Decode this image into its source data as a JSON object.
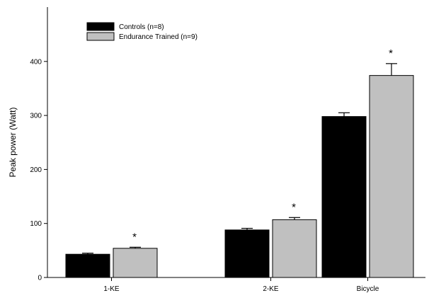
{
  "chart_data": {
    "type": "bar",
    "title": "",
    "xlabel": "",
    "ylabel": "Peak power (Watt)",
    "ylim": [
      0,
      430
    ],
    "yticks": [
      0,
      100,
      200,
      300,
      400
    ],
    "categories": [
      "1-KE",
      "2-KE",
      "Bicycle"
    ],
    "series": [
      {
        "name": "Controls (n=8)",
        "color": "#000000",
        "values": [
          43,
          88,
          298
        ],
        "errors": [
          2,
          3,
          7
        ]
      },
      {
        "name": "Endurance Trained (n=9)",
        "color": "#c0c0c0",
        "values": [
          54,
          107,
          374
        ],
        "errors": [
          2,
          4,
          22
        ]
      }
    ],
    "significance_marker": "*",
    "significance": [
      true,
      true,
      true
    ],
    "legend_position": "top-left",
    "grid": false
  }
}
